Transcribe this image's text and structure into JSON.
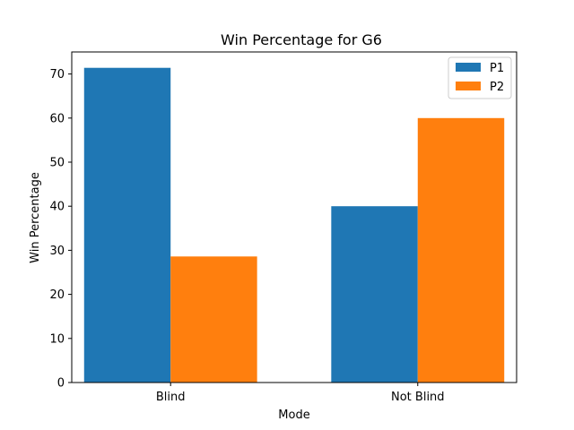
{
  "chart_data": {
    "type": "bar",
    "title": "Win Percentage for G6",
    "xlabel": "Mode",
    "ylabel": "Win Percentage",
    "categories": [
      "Blind",
      "Not Blind"
    ],
    "series": [
      {
        "name": "P1",
        "values": [
          71.4,
          40.0
        ],
        "color": "#1f77b4"
      },
      {
        "name": "P2",
        "values": [
          28.6,
          60.0
        ],
        "color": "#ff7f0e"
      }
    ],
    "ylim": [
      0,
      75
    ],
    "yticks": [
      0,
      10,
      20,
      30,
      40,
      50,
      60,
      70
    ],
    "grid": false,
    "legend_position": "top-right"
  }
}
